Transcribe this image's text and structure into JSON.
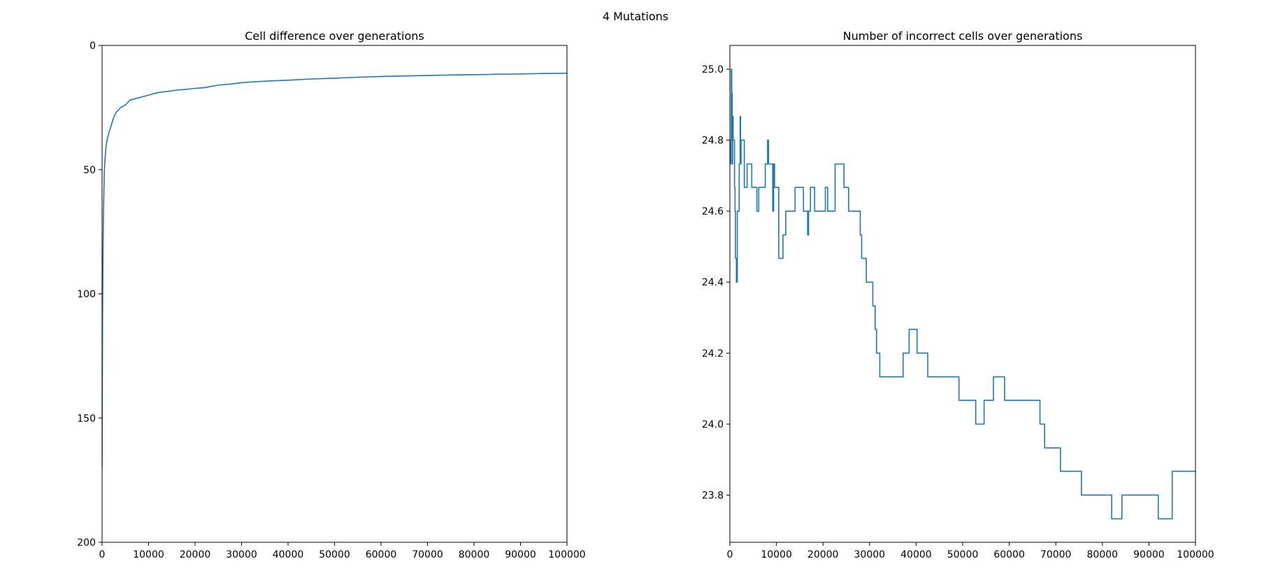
{
  "figure": {
    "suptitle": "4 Mutations"
  },
  "chart_data": [
    {
      "type": "line",
      "title": "Cell difference over generations",
      "xlabel": "",
      "ylabel": "",
      "xlim": [
        0,
        100000
      ],
      "ylim": [
        200,
        0
      ],
      "y_inverted": true,
      "xticks": [
        0,
        10000,
        20000,
        30000,
        40000,
        50000,
        60000,
        70000,
        80000,
        90000,
        100000
      ],
      "yticks": [
        0,
        50,
        100,
        150,
        200
      ],
      "grid": false,
      "line_color": "#1f77b4",
      "series": [
        {
          "x": [
            0,
            50,
            100,
            200,
            300,
            400,
            500,
            700,
            900,
            1200,
            1500,
            2000,
            2500,
            3000,
            3500,
            4000,
            4500,
            5000,
            5500,
            6000,
            7000,
            8000,
            9000,
            10000,
            12000,
            14000,
            16000,
            18000,
            20000,
            22000,
            25000,
            28000,
            30000,
            33000,
            36000,
            40000,
            45000,
            50000,
            55000,
            60000,
            65000,
            70000,
            75000,
            80000,
            85000,
            90000,
            95000,
            100000
          ],
          "y": [
            170,
            140,
            110,
            85,
            68,
            58,
            50,
            44,
            40,
            37,
            35,
            32,
            29,
            27,
            26,
            25,
            24.5,
            24,
            23,
            22,
            21.5,
            21,
            20.5,
            20,
            19,
            18.5,
            18,
            17.7,
            17.3,
            17,
            16,
            15.5,
            15,
            14.6,
            14.3,
            14,
            13.5,
            13.2,
            12.8,
            12.5,
            12.3,
            12.1,
            11.9,
            11.8,
            11.6,
            11.5,
            11.3,
            11.2
          ]
        }
      ]
    },
    {
      "type": "line",
      "title": "Number of incorrect cells over generations",
      "xlabel": "",
      "ylabel": "",
      "xlim": [
        0,
        100000
      ],
      "ylim": [
        23.667,
        25.067
      ],
      "xticks": [
        0,
        10000,
        20000,
        30000,
        40000,
        50000,
        60000,
        70000,
        80000,
        90000,
        100000
      ],
      "yticks": [
        23.8,
        24.0,
        24.2,
        24.4,
        24.6,
        24.8,
        25.0
      ],
      "grid": false,
      "step": true,
      "line_color": "#1f77b4",
      "series": [
        {
          "x": [
            0,
            200,
            300,
            400,
            500,
            600,
            700,
            800,
            900,
            1000,
            1100,
            1200,
            1400,
            1600,
            1800,
            2000,
            2200,
            2300,
            2400,
            2500,
            2700,
            2900,
            3100,
            3500,
            3700,
            4500,
            4700,
            5800,
            6200,
            6800,
            7600,
            7900,
            8100,
            8300,
            8700,
            9200,
            9400,
            9600,
            10000,
            10500,
            11200,
            11400,
            12000,
            13000,
            14000,
            15800,
            16500,
            16700,
            16900,
            17300,
            18200,
            20500,
            21000,
            21500,
            22600,
            24500,
            25500,
            27700,
            28000,
            28300,
            29300,
            30700,
            31200,
            31500,
            31900,
            32200,
            32400,
            37200,
            38500,
            40200,
            42500,
            49200,
            52800,
            54600,
            56600,
            59000,
            66600,
            67600,
            68500,
            71000,
            71200,
            75500,
            75800,
            82000,
            84200,
            92000,
            95000,
            97000,
            100000
          ],
          "y": [
            24.733,
            24.8,
            25.0,
            24.933,
            24.733,
            24.867,
            24.8,
            24.8,
            24.8,
            24.667,
            24.6,
            24.467,
            24.4,
            24.6,
            24.6,
            24.733,
            24.867,
            24.733,
            24.8,
            24.8,
            24.8,
            24.8,
            24.667,
            24.667,
            24.733,
            24.733,
            24.667,
            24.6,
            24.667,
            24.667,
            24.733,
            24.733,
            24.8,
            24.733,
            24.733,
            24.6,
            24.733,
            24.667,
            24.667,
            24.467,
            24.467,
            24.533,
            24.6,
            24.6,
            24.667,
            24.6,
            24.6,
            24.533,
            24.6,
            24.667,
            24.6,
            24.667,
            24.6,
            24.6,
            24.733,
            24.667,
            24.6,
            24.6,
            24.533,
            24.467,
            24.4,
            24.333,
            24.267,
            24.2,
            24.2,
            24.133,
            24.133,
            24.2,
            24.267,
            24.2,
            24.133,
            24.067,
            24.0,
            24.067,
            24.133,
            24.067,
            24.0,
            23.933,
            23.933,
            23.867,
            23.867,
            23.8,
            23.8,
            23.733,
            23.8,
            23.733,
            23.867,
            23.867,
            23.867
          ]
        }
      ]
    }
  ]
}
